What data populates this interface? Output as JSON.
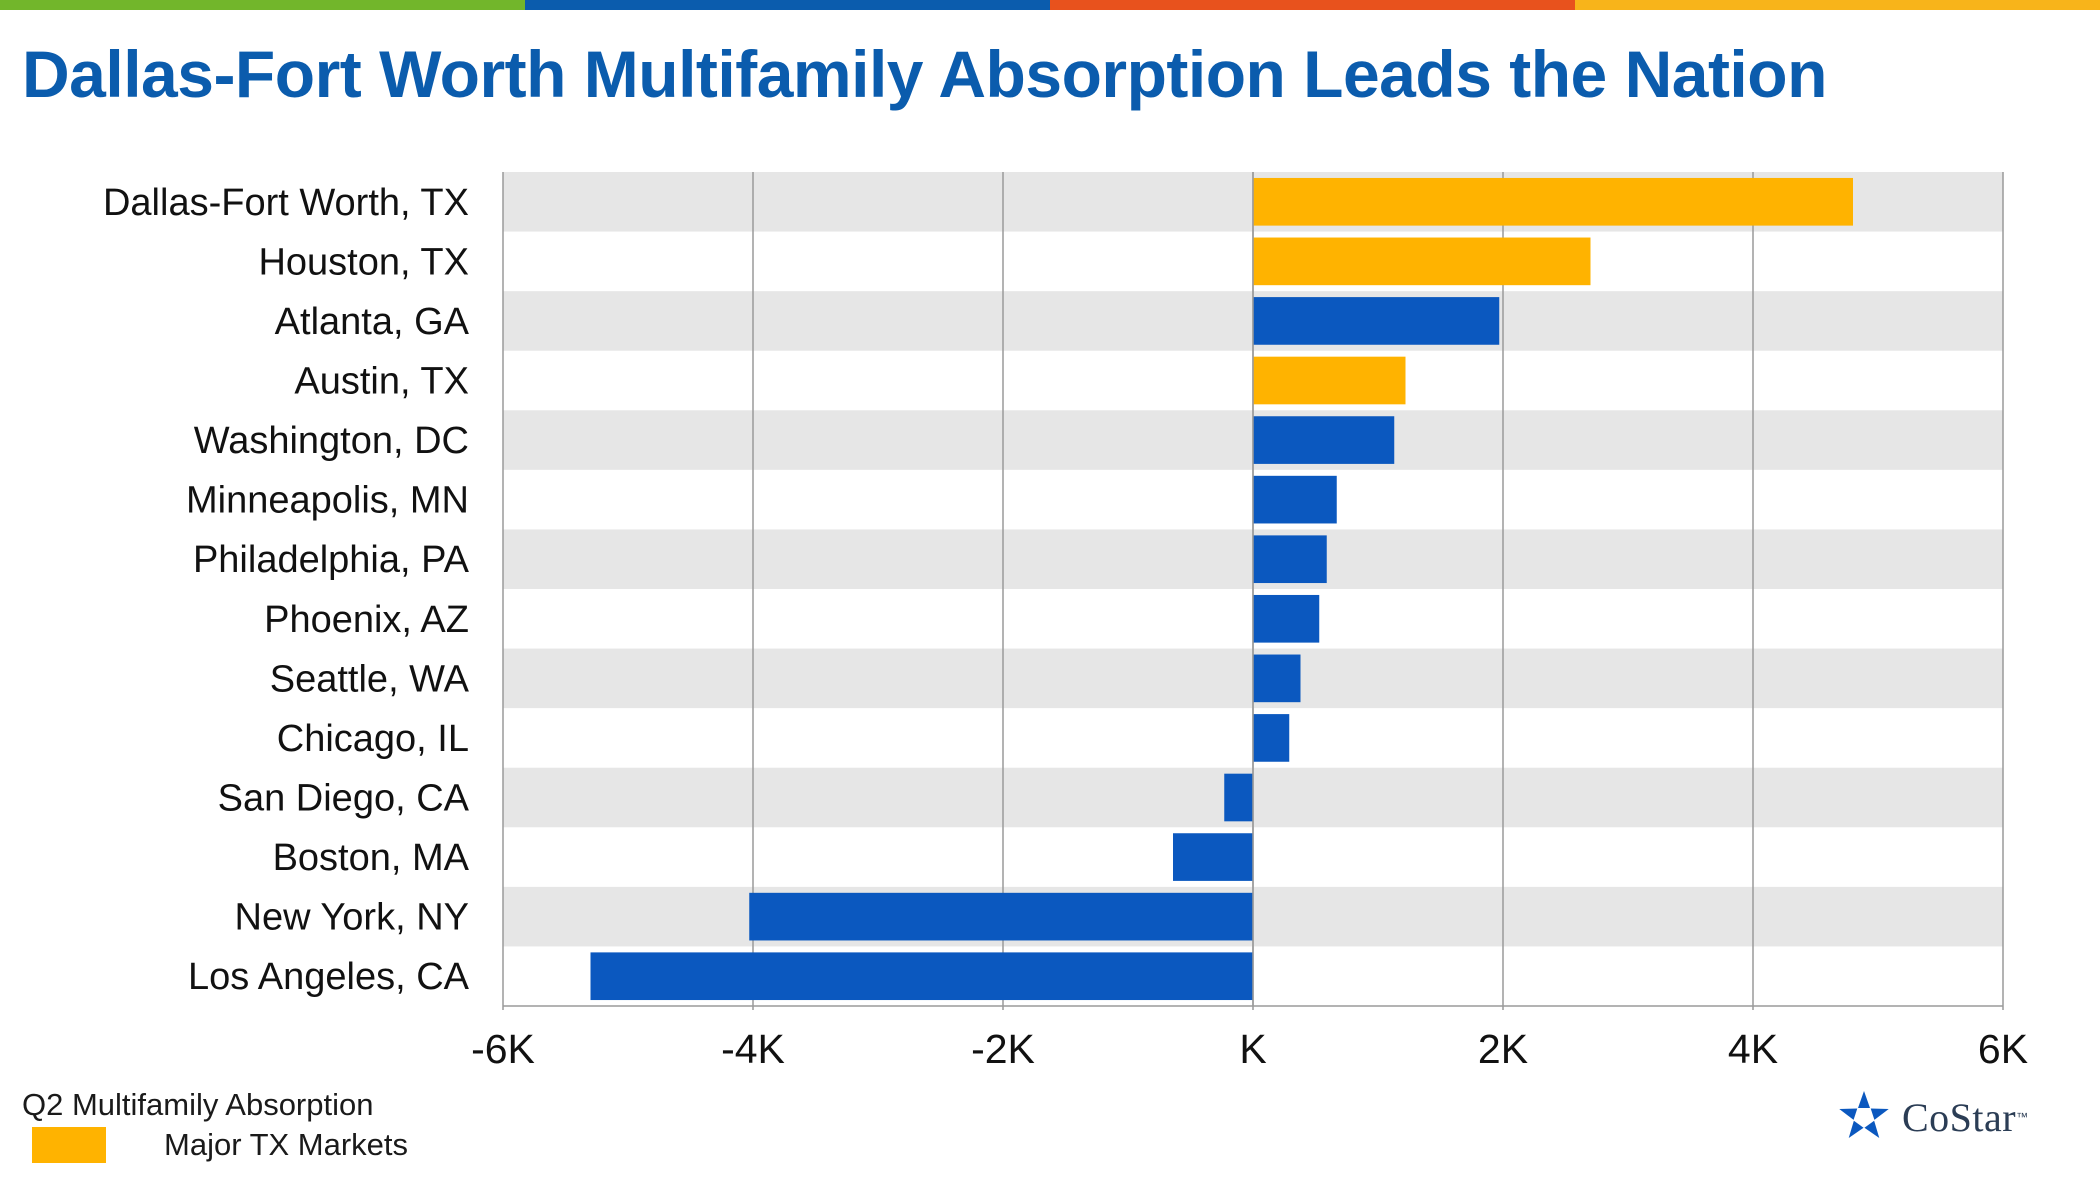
{
  "header": {
    "title": "Dallas-Fort Worth Multifamily Absorption Leads the Nation",
    "top_bar_colors": [
      "#72b62b",
      "#0b5cad",
      "#e8521d",
      "#f8b41a"
    ]
  },
  "colors": {
    "tx_markets": "#ffb300",
    "other_markets": "#0b58bf",
    "band_shade": "#e6e6e6",
    "gridline": "#9a9a9a"
  },
  "chart_data": {
    "type": "bar",
    "orientation": "horizontal",
    "categories": [
      "Dallas-Fort Worth, TX",
      "Houston, TX",
      "Atlanta, GA",
      "Austin, TX",
      "Washington, DC",
      "Minneapolis, MN",
      "Philadelphia, PA",
      "Phoenix, AZ",
      "Seattle, WA",
      "Chicago, IL",
      "San Diego, CA",
      "Boston, MA",
      "New York, NY",
      "Los Angeles, CA"
    ],
    "values": [
      4800,
      2700,
      1970,
      1220,
      1130,
      670,
      590,
      530,
      380,
      290,
      -230,
      -640,
      -4030,
      -5300
    ],
    "highlight": [
      true,
      true,
      false,
      true,
      false,
      false,
      false,
      false,
      false,
      false,
      false,
      false,
      false,
      false
    ],
    "xlim": [
      -6000,
      6000
    ],
    "xticks": [
      -6000,
      -4000,
      -2000,
      0,
      2000,
      4000,
      6000
    ],
    "xtick_labels": [
      "-6K",
      "-4K",
      "-2K",
      "K",
      "2K",
      "4K",
      "6K"
    ],
    "grid": true,
    "legend_position": "bottom-left"
  },
  "footer": {
    "subtitle": "Q2 Multifamily  Absorption",
    "legend_label": "Major  TX Markets",
    "logo_text": "CoStar",
    "logo_tm": "™"
  }
}
